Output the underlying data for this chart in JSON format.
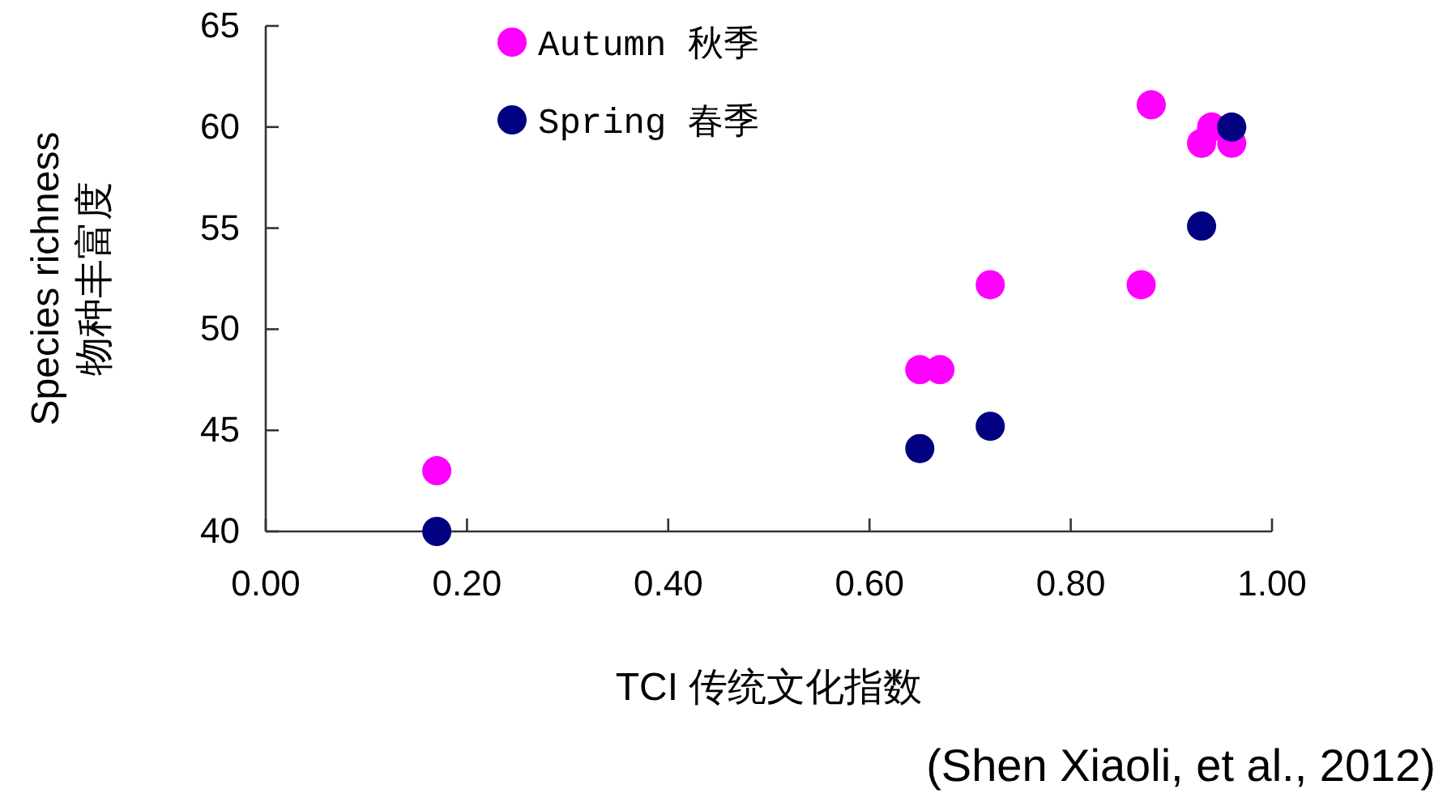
{
  "chart_data": {
    "type": "scatter",
    "xlabel": "TCI  传统文化指数",
    "ylabel": [
      "Species richness",
      "物种丰富度"
    ],
    "annotations": [
      "(Shen Xiaoli, et al., 2012)"
    ],
    "xlim": [
      0,
      1
    ],
    "xticks": [
      {
        "value": 0,
        "label": "0.00"
      },
      {
        "value": 0.2,
        "label": "0.20"
      },
      {
        "value": 0.4,
        "label": "0.40"
      },
      {
        "value": 0.6,
        "label": "0.60"
      },
      {
        "value": 0.8,
        "label": "0.80"
      },
      {
        "value": 1,
        "label": "1.00"
      }
    ],
    "ylim": [
      40,
      65
    ],
    "yticks": [
      40,
      45,
      50,
      55,
      60,
      65
    ],
    "grid": false,
    "legend": "top left",
    "marker": "circle",
    "series": [
      {
        "name": "Autumn 秋季",
        "color": "#ff00ff",
        "x": [
          0.17,
          0.65,
          0.67,
          0.72,
          0.87,
          0.88,
          0.93,
          0.94,
          0.96
        ],
        "values": [
          43,
          48,
          48,
          52.2,
          52.2,
          61.1,
          59.2,
          60,
          59.2
        ]
      },
      {
        "name": "Spring 春季",
        "color": "#000080",
        "x": [
          0.17,
          0.65,
          0.72,
          0.93,
          0.96
        ],
        "values": [
          40,
          44.1,
          45.2,
          55.1,
          60
        ]
      }
    ]
  }
}
